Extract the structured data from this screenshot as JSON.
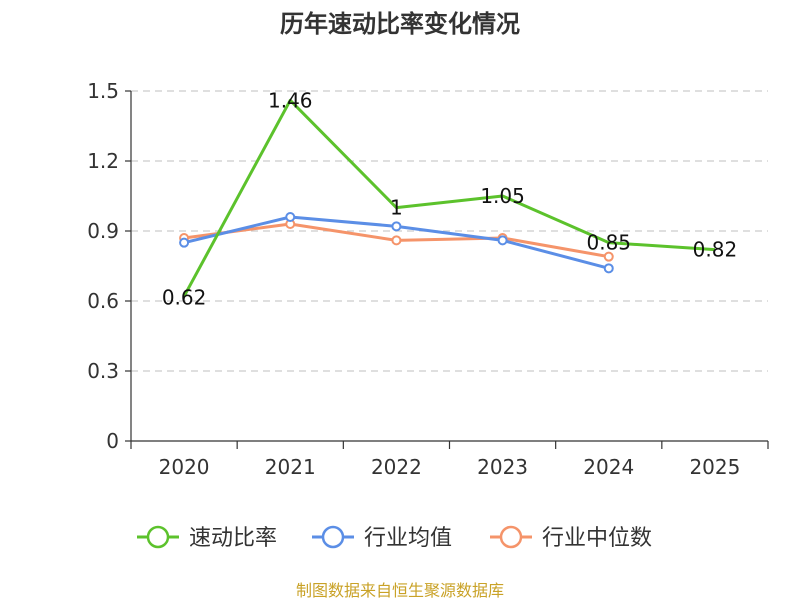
{
  "chart_data": {
    "type": "line",
    "title": "历年速动比率变化情况",
    "categories": [
      "2020",
      "2021",
      "2022",
      "2023",
      "2024",
      "2025"
    ],
    "ylim": [
      0,
      1.5
    ],
    "yticks": [
      "0",
      "0.3",
      "0.6",
      "0.9",
      "1.2",
      "1.5"
    ],
    "grid": true,
    "legend_position": "bottom",
    "series": [
      {
        "name": "速动比率",
        "color": "#5cc22c",
        "values": [
          0.62,
          1.46,
          1.0,
          1.05,
          0.85,
          0.82
        ],
        "labels": [
          "0.62",
          "1.46",
          "1",
          "1.05",
          "0.85",
          "0.82"
        ],
        "show_labels": true,
        "markers": false
      },
      {
        "name": "行业均值",
        "color": "#5b8ee6",
        "values": [
          0.85,
          0.96,
          0.92,
          0.86,
          0.74,
          null
        ],
        "show_labels": false,
        "markers": true
      },
      {
        "name": "行业中位数",
        "color": "#f5946a",
        "values": [
          0.87,
          0.93,
          0.86,
          0.87,
          0.79,
          null
        ],
        "show_labels": false,
        "markers": true
      }
    ],
    "source": "制图数据来自恒生聚源数据库",
    "source_color": "#c9a227"
  }
}
